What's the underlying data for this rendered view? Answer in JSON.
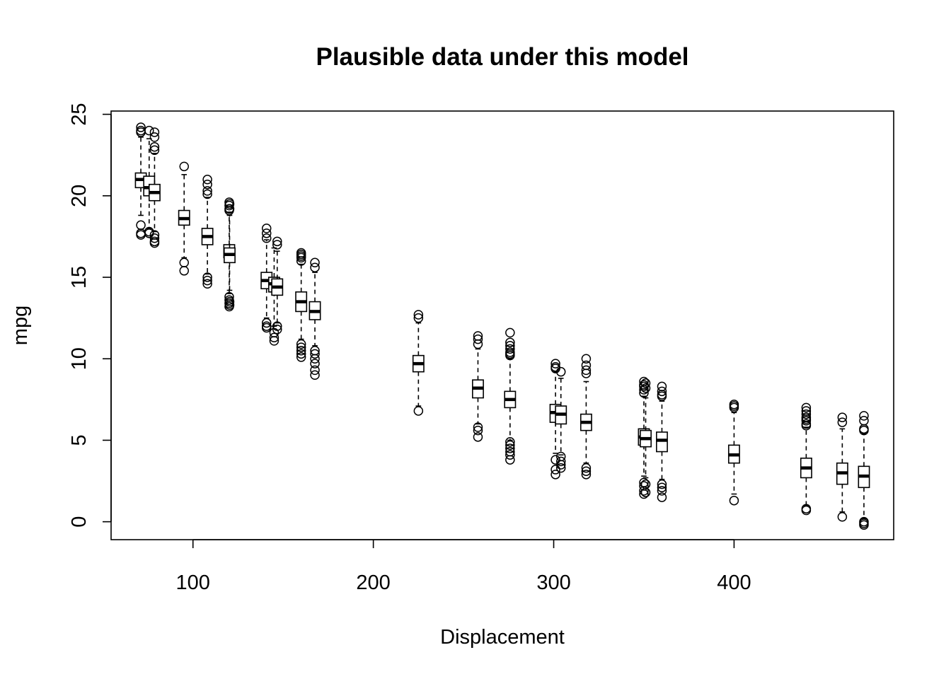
{
  "chart_data": {
    "type": "boxplot",
    "title": "Plausible data under this model",
    "xlabel": "Displacement",
    "ylabel": "mpg",
    "xlim": [
      54.6,
      488.5
    ],
    "ylim": [
      -1.1,
      25.2
    ],
    "xticks": [
      100,
      200,
      300,
      400
    ],
    "yticks": [
      0,
      5,
      10,
      15,
      20,
      25
    ],
    "grid": false,
    "legend": "none",
    "box_width": 6,
    "boxes": [
      {
        "x": 71.1,
        "q1": 20.5,
        "median": 21.0,
        "q3": 21.4,
        "wlo": 18.8,
        "whi": 23.6,
        "outliers": [
          24.2,
          24.0,
          23.9,
          18.2,
          17.7,
          17.6
        ]
      },
      {
        "x": 75.7,
        "q1": 20.0,
        "median": 20.5,
        "q3": 21.2,
        "wlo": 18.0,
        "whi": 23.5,
        "outliers": [
          24.0,
          17.8,
          17.7
        ]
      },
      {
        "x": 78.7,
        "q1": 19.7,
        "median": 20.2,
        "q3": 20.7,
        "wlo": 17.8,
        "whi": 22.6,
        "outliers": [
          23.9,
          23.6,
          23.0,
          22.8,
          17.6,
          17.4,
          17.2,
          17.1
        ]
      },
      {
        "x": 95.1,
        "q1": 18.2,
        "median": 18.6,
        "q3": 19.1,
        "wlo": 16.2,
        "whi": 21.3,
        "outliers": [
          21.8,
          15.9,
          15.4
        ]
      },
      {
        "x": 108.0,
        "q1": 17.0,
        "median": 17.5,
        "q3": 18.0,
        "wlo": 15.2,
        "whi": 19.9,
        "outliers": [
          21.0,
          20.7,
          20.3,
          20.1,
          15.0,
          14.8,
          14.6
        ]
      },
      {
        "x": 120.1,
        "q1": 16.2,
        "median": 16.6,
        "q3": 17.0,
        "wlo": 14.0,
        "whi": 19.0,
        "outliers": [
          19.6,
          19.4,
          19.2,
          19.1,
          13.8,
          13.6,
          13.4,
          13.2
        ]
      },
      {
        "x": 120.3,
        "q1": 15.9,
        "median": 16.4,
        "q3": 16.8,
        "wlo": 14.2,
        "whi": 18.8,
        "outliers": [
          19.5,
          19.2,
          13.5,
          13.3
        ]
      },
      {
        "x": 140.8,
        "q1": 14.3,
        "median": 14.8,
        "q3": 15.3,
        "wlo": 12.5,
        "whi": 17.3,
        "outliers": [
          18.0,
          17.7,
          17.4,
          12.2,
          12.0,
          11.9
        ]
      },
      {
        "x": 145.0,
        "q1": 14.1,
        "median": 14.6,
        "q3": 15.0,
        "wlo": 12.0,
        "whi": 16.8,
        "outliers": [
          11.6,
          11.3,
          11.1
        ]
      },
      {
        "x": 146.7,
        "q1": 13.9,
        "median": 14.4,
        "q3": 14.9,
        "wlo": 12.2,
        "whi": 16.6,
        "outliers": [
          17.2,
          17.0,
          12.0,
          11.8
        ]
      },
      {
        "x": 160.0,
        "q1": 12.9,
        "median": 13.5,
        "q3": 14.1,
        "wlo": 11.2,
        "whi": 15.8,
        "outliers": [
          16.5,
          16.4,
          16.3,
          16.2,
          16.0,
          10.9,
          10.7,
          10.5,
          10.3,
          10.1
        ]
      },
      {
        "x": 167.6,
        "q1": 12.4,
        "median": 12.9,
        "q3": 13.5,
        "wlo": 10.8,
        "whi": 15.3,
        "outliers": [
          15.9,
          15.6,
          10.5,
          10.3,
          10.0,
          9.7,
          9.3,
          9.0
        ]
      },
      {
        "x": 225.0,
        "q1": 9.2,
        "median": 9.7,
        "q3": 10.2,
        "wlo": 7.1,
        "whi": 12.2,
        "outliers": [
          12.7,
          12.5,
          6.8
        ]
      },
      {
        "x": 258.0,
        "q1": 7.6,
        "median": 8.2,
        "q3": 8.7,
        "wlo": 6.0,
        "whi": 10.6,
        "outliers": [
          11.4,
          11.2,
          10.9,
          5.8,
          5.6,
          5.2
        ]
      },
      {
        "x": 275.8,
        "q1": 7.0,
        "median": 7.5,
        "q3": 8.0,
        "wlo": 5.0,
        "whi": 10.0,
        "outliers": [
          11.6,
          11.0,
          10.8,
          10.6,
          10.4,
          10.3,
          10.2,
          4.9,
          4.7,
          4.5,
          4.3,
          4.1,
          3.8
        ]
      },
      {
        "x": 301.0,
        "q1": 6.1,
        "median": 6.7,
        "q3": 7.2,
        "wlo": 4.2,
        "whi": 9.2,
        "outliers": [
          9.7,
          9.5,
          9.4,
          3.8,
          3.2,
          2.9
        ]
      },
      {
        "x": 304.0,
        "q1": 6.0,
        "median": 6.6,
        "q3": 7.1,
        "wlo": 4.1,
        "whi": 8.8,
        "outliers": [
          9.2,
          4.0,
          3.7,
          3.5,
          3.3
        ]
      },
      {
        "x": 318.0,
        "q1": 5.6,
        "median": 6.1,
        "q3": 6.6,
        "wlo": 3.6,
        "whi": 8.6,
        "outliers": [
          10.0,
          9.6,
          9.3,
          9.1,
          3.3,
          3.1,
          2.9
        ]
      },
      {
        "x": 350.0,
        "q1": 4.7,
        "median": 5.2,
        "q3": 5.7,
        "wlo": 2.8,
        "whi": 7.7,
        "outliers": [
          8.6,
          8.4,
          8.3,
          8.1,
          7.9,
          2.4,
          2.2,
          1.9,
          1.7
        ]
      },
      {
        "x": 351.0,
        "q1": 4.6,
        "median": 5.1,
        "q3": 5.6,
        "wlo": 2.7,
        "whi": 7.6,
        "outliers": [
          8.5,
          8.2,
          2.3,
          1.8
        ]
      },
      {
        "x": 360.0,
        "q1": 4.3,
        "median": 5.0,
        "q3": 5.5,
        "wlo": 2.6,
        "whi": 7.4,
        "outliers": [
          8.3,
          8.0,
          7.8,
          7.7,
          2.3,
          2.1,
          1.9,
          1.5
        ]
      },
      {
        "x": 400.0,
        "q1": 3.6,
        "median": 4.1,
        "q3": 4.7,
        "wlo": 1.7,
        "whi": 6.7,
        "outliers": [
          7.2,
          7.1,
          7.0,
          1.3
        ]
      },
      {
        "x": 440.0,
        "q1": 2.7,
        "median": 3.3,
        "q3": 3.9,
        "wlo": 1.0,
        "whi": 5.8,
        "outliers": [
          7.0,
          6.8,
          6.6,
          6.4,
          6.3,
          6.2,
          6.0,
          5.9,
          0.8,
          0.7
        ]
      },
      {
        "x": 460.0,
        "q1": 2.3,
        "median": 3.0,
        "q3": 3.6,
        "wlo": 0.6,
        "whi": 5.7,
        "outliers": [
          6.4,
          6.1,
          0.3
        ]
      },
      {
        "x": 472.0,
        "q1": 2.1,
        "median": 2.8,
        "q3": 3.4,
        "wlo": 0.2,
        "whi": 5.4,
        "outliers": [
          6.5,
          6.2,
          5.7,
          5.6,
          0.0,
          -0.1,
          -0.2
        ]
      }
    ]
  }
}
